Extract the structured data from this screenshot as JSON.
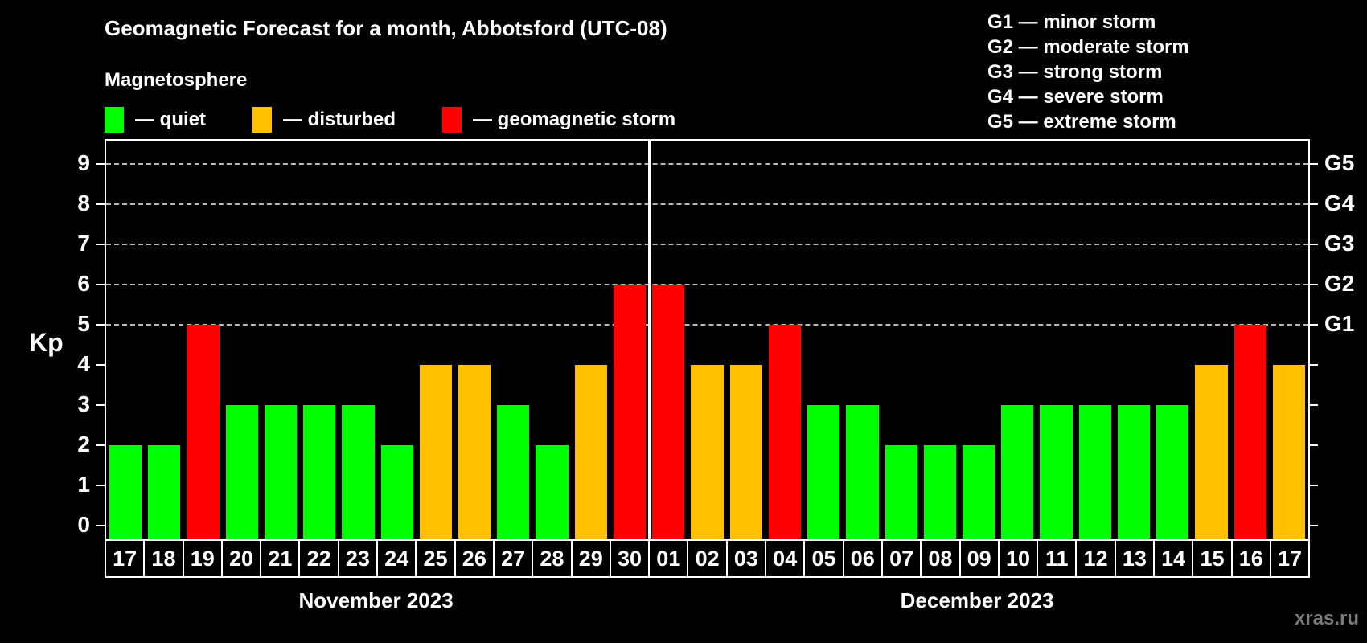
{
  "title": "Geomagnetic Forecast for a month, Abbotsford (UTC-08)",
  "subtitle": "Magnetosphere",
  "legend": {
    "items": [
      {
        "name": "quiet",
        "label": "— quiet",
        "color": "#00ff00"
      },
      {
        "name": "disturbed",
        "label": "— disturbed",
        "color": "#ffc000"
      },
      {
        "name": "storm",
        "label": "— geomagnetic storm",
        "color": "#ff0000"
      }
    ]
  },
  "g_legend": [
    "G1 — minor storm",
    "G2 — moderate storm",
    "G3 — strong storm",
    "G4 — severe storm",
    "G5 — extreme storm"
  ],
  "watermark": "xras.ru",
  "chart_data": {
    "type": "bar",
    "title": "Geomagnetic Forecast for a month, Abbotsford (UTC-08)",
    "ylabel": "Kp",
    "ylim": [
      0,
      9
    ],
    "yticks": [
      0,
      1,
      2,
      3,
      4,
      5,
      6,
      7,
      8,
      9
    ],
    "grid": "dashed horizontal at storm levels",
    "grid_levels": [
      5,
      6,
      7,
      8,
      9
    ],
    "right_axis_labels": [
      {
        "kp": 5,
        "label": "G1"
      },
      {
        "kp": 6,
        "label": "G2"
      },
      {
        "kp": 7,
        "label": "G3"
      },
      {
        "kp": 8,
        "label": "G4"
      },
      {
        "kp": 9,
        "label": "G5"
      }
    ],
    "months": [
      {
        "label": "November 2023",
        "days": 14
      },
      {
        "label": "December 2023",
        "days": 17
      }
    ],
    "categories": [
      "17",
      "18",
      "19",
      "20",
      "21",
      "22",
      "23",
      "24",
      "25",
      "26",
      "27",
      "28",
      "29",
      "30",
      "01",
      "02",
      "03",
      "04",
      "05",
      "06",
      "07",
      "08",
      "09",
      "10",
      "11",
      "12",
      "13",
      "14",
      "15",
      "16",
      "17"
    ],
    "values": [
      2,
      2,
      5,
      3,
      3,
      3,
      3,
      2,
      4,
      4,
      3,
      2,
      4,
      6,
      6,
      4,
      4,
      5,
      3,
      3,
      2,
      2,
      2,
      3,
      3,
      3,
      3,
      3,
      4,
      5,
      4
    ],
    "levels": [
      "quiet",
      "quiet",
      "storm",
      "quiet",
      "quiet",
      "quiet",
      "quiet",
      "quiet",
      "disturbed",
      "disturbed",
      "quiet",
      "quiet",
      "disturbed",
      "storm",
      "storm",
      "disturbed",
      "disturbed",
      "storm",
      "quiet",
      "quiet",
      "quiet",
      "quiet",
      "quiet",
      "quiet",
      "quiet",
      "quiet",
      "quiet",
      "quiet",
      "disturbed",
      "storm",
      "disturbed"
    ],
    "palette": {
      "quiet": "#00ff00",
      "disturbed": "#ffc000",
      "storm": "#ff0000"
    },
    "colors": {
      "background": "#000000",
      "text": "#ffffff",
      "gridline": "#b8b8b8",
      "watermark": "#7a7a7a"
    }
  }
}
